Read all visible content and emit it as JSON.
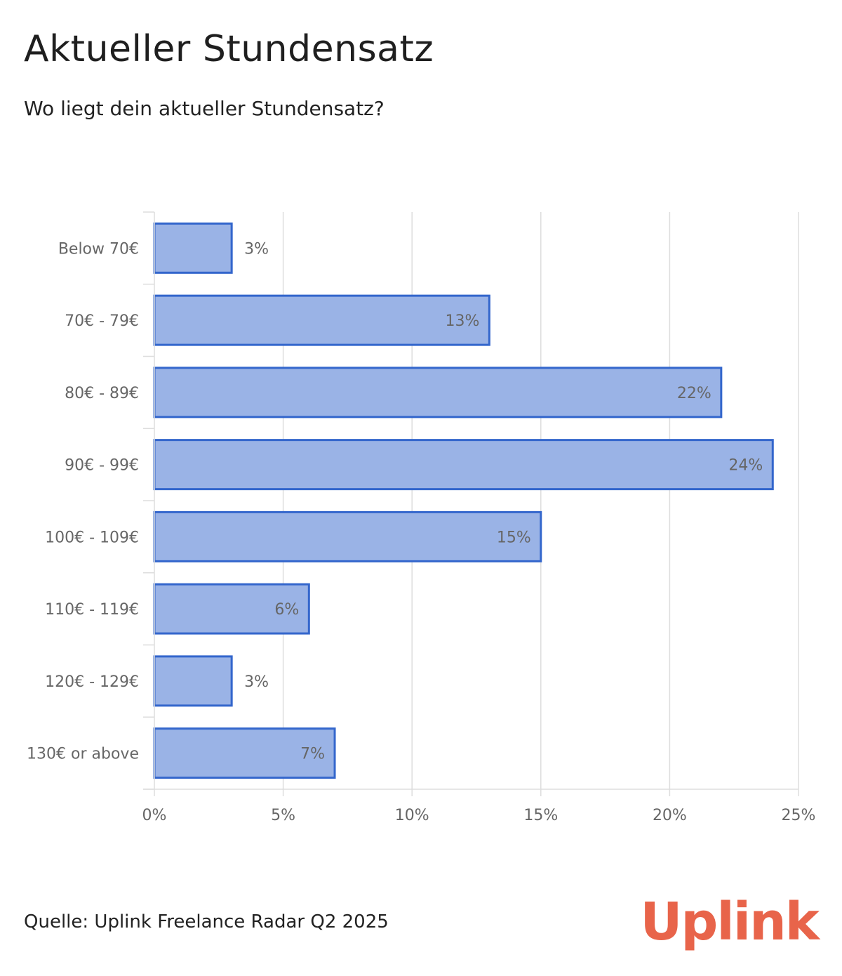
{
  "header": {
    "title": "Aktueller Stundensatz",
    "subtitle": "Wo liegt dein aktueller Stundensatz?"
  },
  "footer": {
    "source": "Quelle: Uplink Freelance Radar Q2 2025",
    "logo": "Uplink"
  },
  "colors": {
    "bar_fill": "#9ab3e6",
    "bar_stroke": "#3366cc",
    "grid": "#dddddd",
    "label": "#666666",
    "brand": "#e8644a"
  },
  "chart_data": {
    "type": "bar",
    "orientation": "horizontal",
    "categories": [
      "Below 70€",
      "70€ - 79€",
      "80€ - 89€",
      "90€ - 99€",
      "100€ - 109€",
      "110€ - 119€",
      "120€ - 129€",
      "130€ or above"
    ],
    "values": [
      3,
      13,
      22,
      24,
      15,
      6,
      3,
      7
    ],
    "value_labels": [
      "3%",
      "13%",
      "22%",
      "24%",
      "15%",
      "6%",
      "3%",
      "7%"
    ],
    "xlim": [
      0,
      25
    ],
    "x_ticks": [
      0,
      5,
      10,
      15,
      20,
      25
    ],
    "x_tick_labels": [
      "0%",
      "5%",
      "10%",
      "15%",
      "20%",
      "25%"
    ],
    "grid": true
  }
}
